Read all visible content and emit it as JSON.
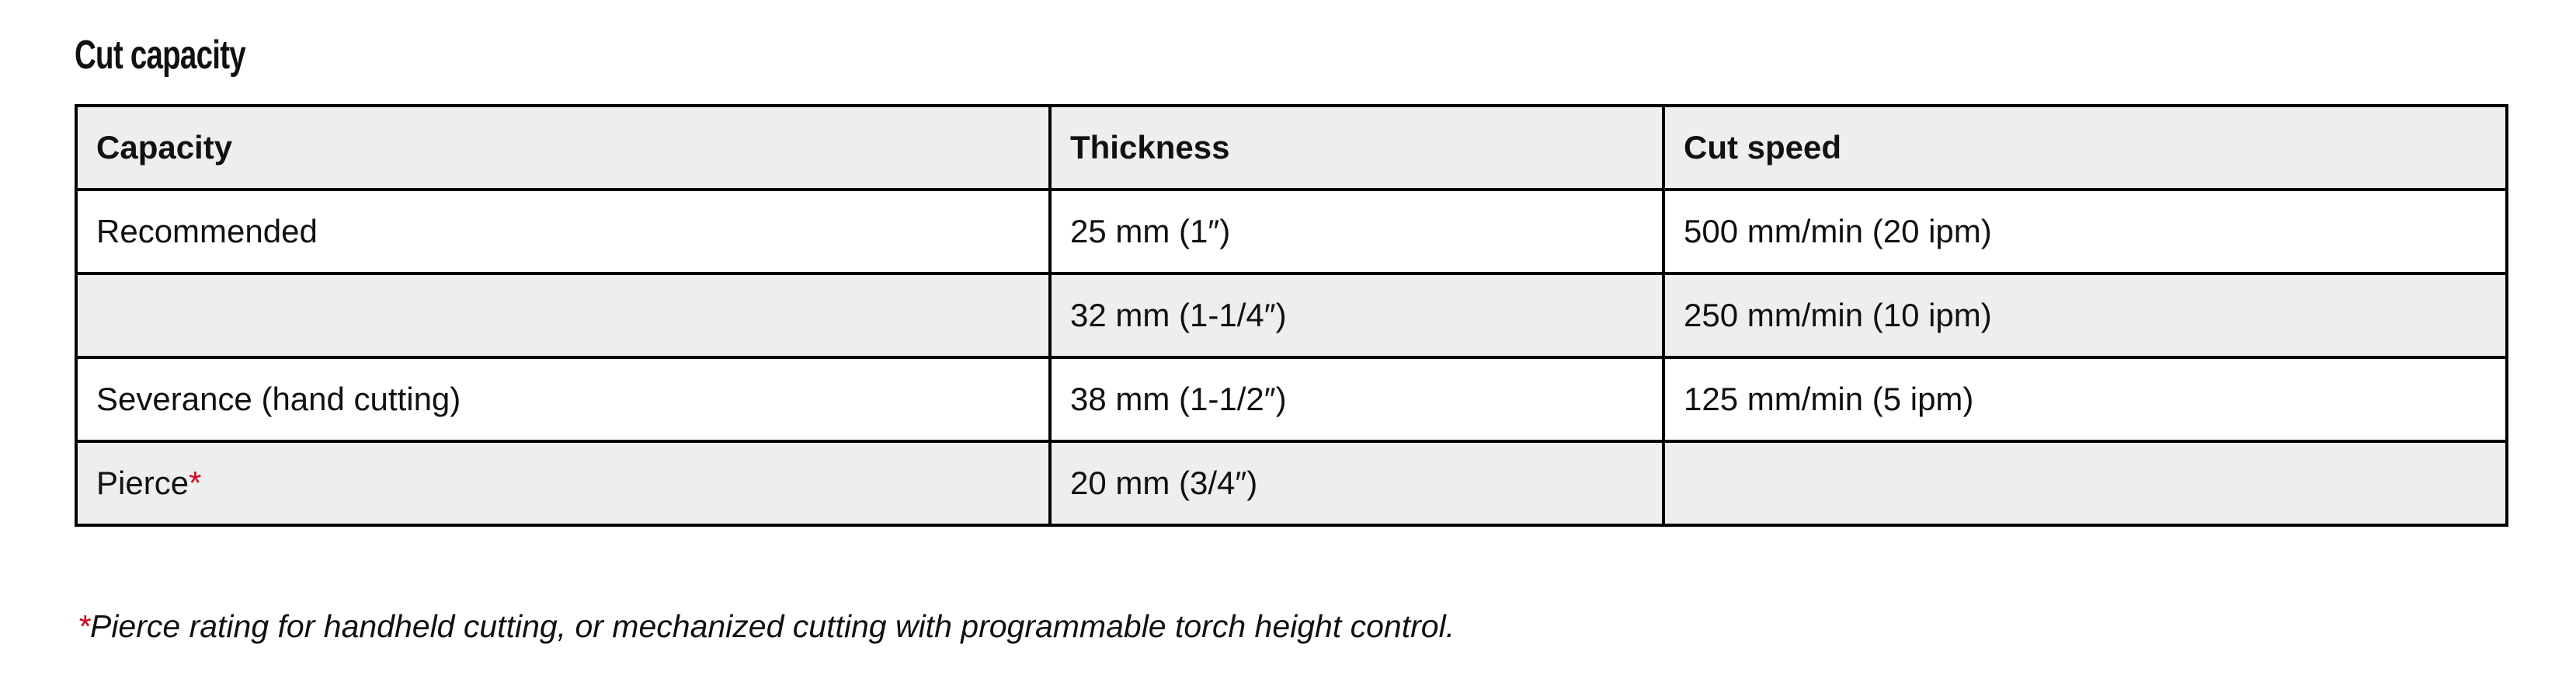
{
  "title": "Cut capacity",
  "table": {
    "headers": [
      "Capacity",
      "Thickness",
      "Cut speed"
    ],
    "rows": [
      {
        "capacity": "Recommended",
        "thickness": "25 mm (1″)",
        "speed": "500 mm/min (20 ipm)"
      },
      {
        "capacity": "",
        "thickness": "32 mm (1-1/4″)",
        "speed": "250 mm/min (10 ipm)"
      },
      {
        "capacity": "Severance (hand cutting)",
        "thickness": "38 mm (1-1/2″)",
        "speed": "125 mm/min (5 ipm)"
      },
      {
        "capacity": "Pierce",
        "capacity_mark": "*",
        "thickness": "20 mm (3/4″)",
        "speed": ""
      }
    ]
  },
  "footnote": {
    "mark": "*",
    "text": "Pierce rating for handheld cutting, or mechanized cutting with programmable torch height control."
  },
  "colors": {
    "text": "#111111",
    "border": "#000000",
    "header_bg": "#eeeeee",
    "shaded_row_bg": "#eeeeee",
    "asterisk": "#d6001c"
  }
}
